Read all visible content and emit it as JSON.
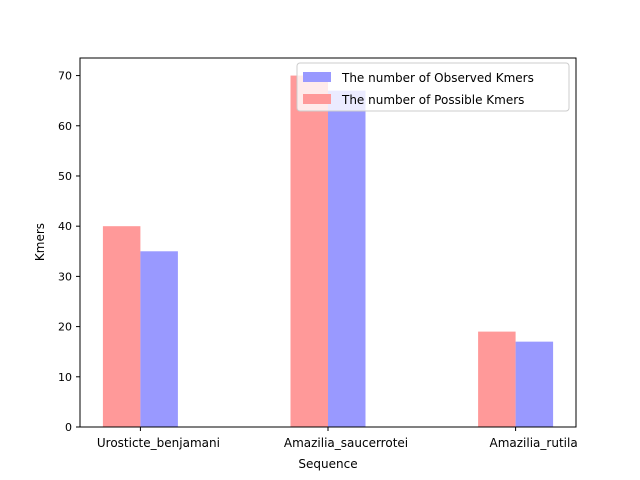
{
  "chart_data": {
    "type": "bar",
    "categories": [
      "Urosticte_benjamani",
      "Amazilia_saucerrotei",
      "Amazilia_rutila"
    ],
    "series": [
      {
        "name": "The number of Possible Kmers",
        "values": [
          40,
          70,
          19
        ],
        "color": "#ff9999"
      },
      {
        "name": "The number of Observed Kmers",
        "values": [
          35,
          67,
          17
        ],
        "color": "#9999ff"
      }
    ],
    "legend_order": [
      1,
      0
    ],
    "legend_position": "upper-right",
    "title": "",
    "xlabel": "Sequence",
    "ylabel": "Kmers",
    "ylim": [
      0,
      73.5
    ],
    "yticks": [
      0,
      10,
      20,
      30,
      40,
      50,
      60,
      70
    ],
    "grid": false
  }
}
